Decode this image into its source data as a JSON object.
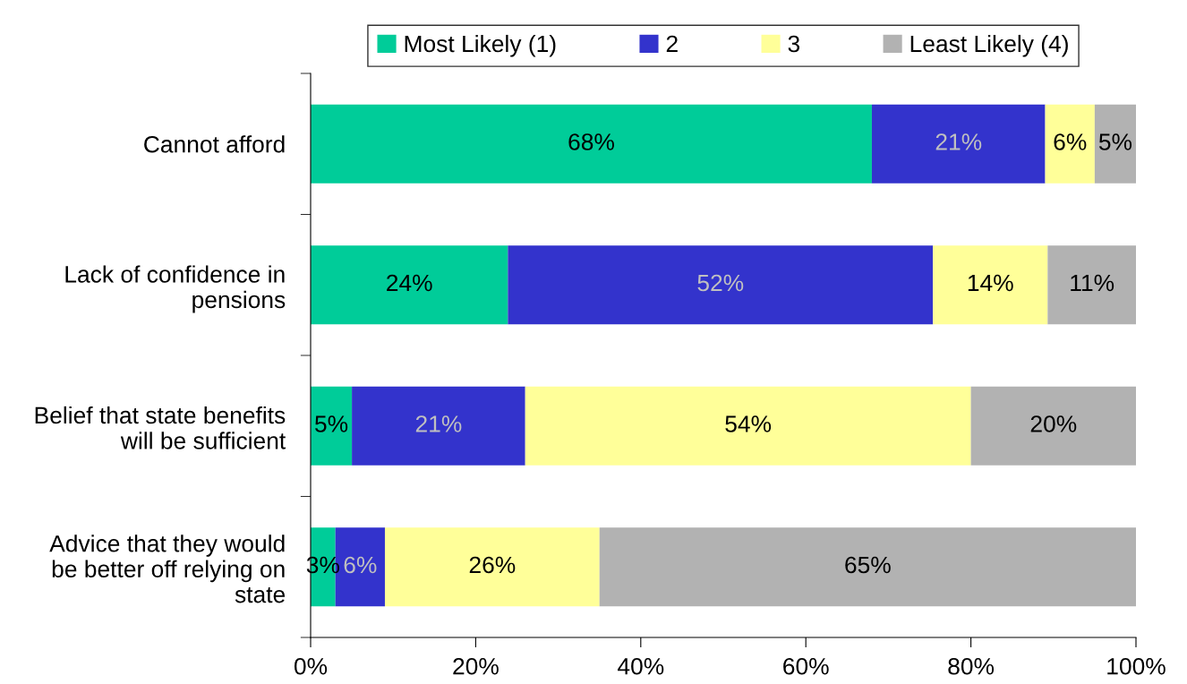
{
  "chart_data": {
    "type": "bar",
    "orientation": "horizontal",
    "stacked": true,
    "categories": [
      "Cannot afford",
      "Lack of confidence in\npensions",
      "Belief that state benefits\nwill be sufficient",
      "Advice that they would\nbe better off relying on\nstate"
    ],
    "series": [
      {
        "name": "Most Likely (1)",
        "color": "#00cc99",
        "values": [
          68,
          23.9,
          5,
          3
        ],
        "value_labels": [
          "68%",
          "24%",
          "5%",
          "3%"
        ]
      },
      {
        "name": "2",
        "color": "#3333cc",
        "values": [
          21,
          51.5,
          21,
          6
        ],
        "value_labels": [
          "21%",
          "52%",
          "21%",
          "6%"
        ]
      },
      {
        "name": "3",
        "color": "#ffff99",
        "values": [
          6,
          13.9,
          54,
          26
        ],
        "value_labels": [
          "6%",
          "14%",
          "54%",
          "26%"
        ]
      },
      {
        "name": "Least Likely (4)",
        "color": "#b2b2b2",
        "values": [
          5,
          10.7,
          20,
          65
        ],
        "value_labels": [
          "5%",
          "11%",
          "20%",
          "65%"
        ]
      }
    ],
    "xlim": [
      0,
      100
    ],
    "xticks": [
      {
        "value": 0,
        "label": "0%"
      },
      {
        "value": 20,
        "label": "20%"
      },
      {
        "value": 40,
        "label": "40%"
      },
      {
        "value": 60,
        "label": "60%"
      },
      {
        "value": 80,
        "label": "80%"
      },
      {
        "value": 100,
        "label": "100%"
      }
    ],
    "grid": false,
    "legend": "top"
  }
}
